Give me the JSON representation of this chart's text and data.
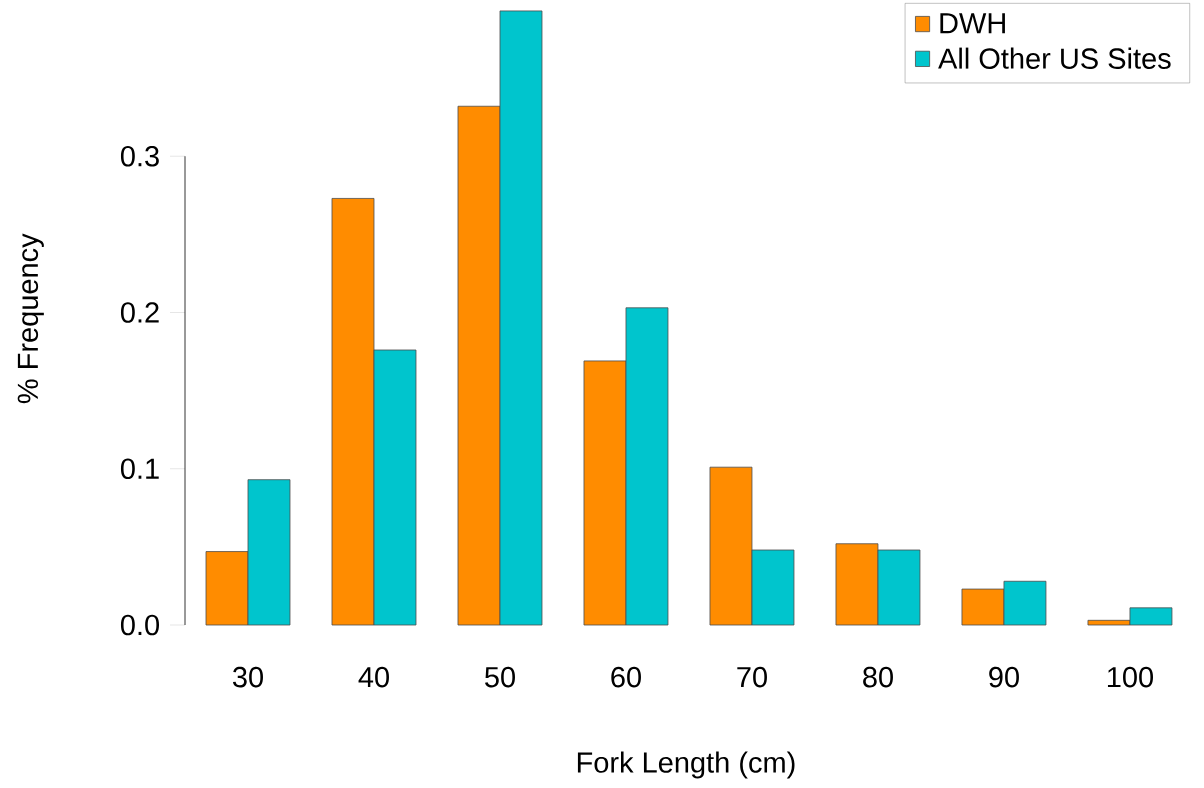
{
  "chart_data": {
    "type": "bar",
    "xlabel": "Fork Length (cm)",
    "ylabel": "% Frequency",
    "categories": [
      "30",
      "40",
      "50",
      "60",
      "70",
      "80",
      "90",
      "100"
    ],
    "series": [
      {
        "name": "DWH",
        "color": "#ff8c00",
        "values": [
          0.047,
          0.273,
          0.332,
          0.169,
          0.101,
          0.052,
          0.023,
          0.003
        ]
      },
      {
        "name": "All Other US Sites",
        "color": "#00c5cd",
        "values": [
          0.093,
          0.176,
          0.393,
          0.203,
          0.048,
          0.048,
          0.028,
          0.011
        ]
      }
    ],
    "ylim": [
      0,
      0.4
    ],
    "yticks": [
      {
        "value": 0,
        "label": "0.0"
      },
      {
        "value": 0.1,
        "label": "0.1"
      },
      {
        "value": 0.2,
        "label": "0.2"
      },
      {
        "value": 0.3,
        "label": "0.3"
      }
    ],
    "legend": "top right"
  }
}
